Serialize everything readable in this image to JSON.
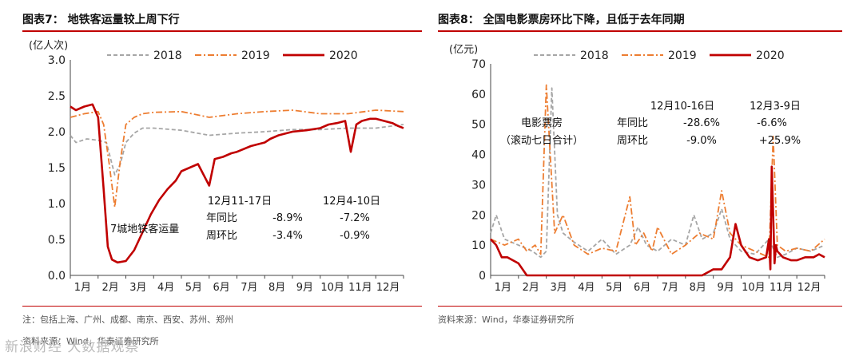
{
  "charts": [
    {
      "title": "图表7： 地铁客运量较上周下行",
      "footnote": "注：包括上海、广州、成都、南京、西安、苏州、郑州",
      "source": "资料来源：Wind，华泰证券研究所"
    },
    {
      "title": "图表8： 全国电影票房环比下降，且低于去年同期",
      "footnote": "",
      "source": "资料来源：Wind，华泰证券研究所"
    }
  ],
  "watermark": "新浪财经 大数据观察",
  "colors": {
    "s2018": "#a6a6a6",
    "s2019": "#ed7d31",
    "s2020": "#c00000",
    "accent": "#c00000"
  },
  "chart_data": [
    {
      "type": "line",
      "title": "地铁客运量较上周下行",
      "ylabel": "(亿人次)",
      "xlabel": "",
      "ylim": [
        0,
        3.0
      ],
      "yticks": [
        "0.0",
        "0.5",
        "1.0",
        "1.5",
        "2.0",
        "2.5",
        "3.0"
      ],
      "categories": [
        "1月",
        "2月",
        "3月",
        "4月",
        "5月",
        "6月",
        "7月",
        "8月",
        "9月",
        "10月",
        "11月",
        "12月"
      ],
      "legend": "top",
      "series": [
        {
          "name": "2018",
          "style": "dashed",
          "x": [
            0,
            0.2,
            0.6,
            1.0,
            1.3,
            1.6,
            1.8,
            2.0,
            2.3,
            2.6,
            3.0,
            4.0,
            5.0,
            6.0,
            7.0,
            8.0,
            9.0,
            10.0,
            11.0,
            12.0
          ],
          "values": [
            1.95,
            1.85,
            1.9,
            1.88,
            1.85,
            1.4,
            1.55,
            1.85,
            1.98,
            2.05,
            2.05,
            2.02,
            1.95,
            1.98,
            2.0,
            2.03,
            2.03,
            2.05,
            2.05,
            2.1
          ]
        },
        {
          "name": "2019",
          "style": "dashdot",
          "x": [
            0,
            0.5,
            1.0,
            1.2,
            1.4,
            1.6,
            1.8,
            2.0,
            2.3,
            2.6,
            3.0,
            4.0,
            5.0,
            6.0,
            7.0,
            8.0,
            9.0,
            10.0,
            11.0,
            12.0
          ],
          "values": [
            2.2,
            2.25,
            2.28,
            2.1,
            1.55,
            0.95,
            1.6,
            2.1,
            2.2,
            2.25,
            2.27,
            2.28,
            2.2,
            2.25,
            2.28,
            2.3,
            2.25,
            2.25,
            2.3,
            2.28
          ]
        },
        {
          "name": "2020",
          "style": "solid",
          "x": [
            0,
            0.2,
            0.5,
            0.8,
            1.0,
            1.2,
            1.35,
            1.5,
            1.7,
            2.0,
            2.3,
            2.6,
            2.9,
            3.2,
            3.5,
            3.8,
            4.0,
            4.3,
            4.6,
            4.8,
            5.0,
            5.2,
            5.5,
            5.8,
            6.0,
            6.5,
            7.0,
            7.2,
            7.5,
            8.0,
            8.5,
            9.0,
            9.3,
            9.6,
            9.9,
            10.1,
            10.3,
            10.5,
            10.8,
            11.0,
            11.3,
            11.6,
            11.8,
            12.0
          ],
          "values": [
            2.35,
            2.3,
            2.35,
            2.38,
            2.2,
            1.2,
            0.4,
            0.22,
            0.18,
            0.2,
            0.35,
            0.6,
            0.85,
            1.05,
            1.2,
            1.32,
            1.45,
            1.5,
            1.55,
            1.4,
            1.25,
            1.62,
            1.65,
            1.7,
            1.72,
            1.8,
            1.85,
            1.9,
            1.95,
            2.0,
            2.02,
            2.05,
            2.1,
            2.12,
            2.15,
            1.72,
            2.1,
            2.15,
            2.18,
            2.18,
            2.15,
            2.12,
            2.08,
            2.05
          ]
        }
      ],
      "annotations": {
        "series_label": "7城地铁客运量",
        "col1": "12月11-17日",
        "col2": "12月4-10日",
        "row1": "年同比",
        "row2": "周环比",
        "yoy1": "-8.9%",
        "yoy2": "-7.2%",
        "wow1": "-3.4%",
        "wow2": "-0.9%"
      }
    },
    {
      "type": "line",
      "title": "全国电影票房环比下降，且低于去年同期",
      "ylabel": "(亿元)",
      "xlabel": "",
      "ylim": [
        0,
        70
      ],
      "yticks": [
        "0",
        "10",
        "20",
        "30",
        "40",
        "50",
        "60",
        "70"
      ],
      "categories": [
        "1月",
        "2月",
        "3月",
        "4月",
        "5月",
        "6月",
        "7月",
        "8月",
        "9月",
        "10月",
        "11月",
        "12月"
      ],
      "legend": "top",
      "series": [
        {
          "name": "2018",
          "style": "dashed",
          "x": [
            0,
            0.2,
            0.5,
            1.0,
            1.5,
            1.8,
            2.0,
            2.2,
            2.4,
            2.6,
            3.0,
            3.5,
            4.0,
            4.5,
            5.0,
            5.3,
            5.6,
            6.0,
            6.5,
            7.0,
            7.3,
            7.6,
            8.0,
            8.3,
            8.6,
            9.0,
            9.5,
            10.0,
            10.3,
            10.6,
            11.0,
            11.5,
            12.0
          ],
          "values": [
            14,
            20,
            12,
            10,
            8,
            6,
            8,
            62,
            20,
            14,
            11,
            8,
            12,
            7,
            10,
            16,
            10,
            8,
            12,
            10,
            20,
            12,
            14,
            22,
            12,
            8,
            7,
            12,
            6,
            7,
            9,
            8,
            10
          ]
        },
        {
          "name": "2019",
          "style": "dashdot",
          "x": [
            0,
            0.5,
            1.0,
            1.3,
            1.6,
            1.8,
            2.0,
            2.3,
            2.6,
            3.0,
            3.5,
            4.0,
            4.5,
            5.0,
            5.2,
            5.5,
            5.8,
            6.0,
            6.5,
            7.0,
            7.5,
            8.0,
            8.3,
            8.6,
            9.0,
            9.5,
            10.0,
            10.15,
            10.3,
            10.6,
            11.0,
            11.5,
            12.0
          ],
          "values": [
            12,
            10,
            12,
            8,
            10,
            7,
            63,
            14,
            20,
            10,
            7,
            9,
            8,
            26,
            10,
            14,
            8,
            16,
            7,
            10,
            14,
            12,
            28,
            14,
            10,
            8,
            6,
            46,
            10,
            8,
            9,
            8,
            12
          ]
        },
        {
          "name": "2020",
          "style": "solid",
          "x": [
            0,
            0.2,
            0.4,
            0.6,
            1.0,
            1.3,
            1.5,
            1.7,
            2.0,
            3.0,
            4.0,
            5.0,
            6.0,
            7.0,
            7.6,
            8.0,
            8.3,
            8.6,
            8.8,
            9.0,
            9.3,
            9.6,
            9.9,
            10.0,
            10.05,
            10.1,
            10.15,
            10.2,
            10.25,
            10.3,
            10.5,
            10.8,
            11.0,
            11.3,
            11.6,
            11.8,
            12.0
          ],
          "values": [
            12,
            10,
            6,
            6,
            4,
            0,
            0,
            0,
            0,
            0,
            0,
            0,
            0,
            0,
            0,
            2,
            2,
            6,
            17,
            10,
            6,
            5,
            6,
            12,
            2,
            36,
            20,
            4,
            10,
            8,
            6,
            5,
            5,
            6,
            6,
            7,
            6
          ]
        }
      ],
      "annotations": {
        "series_label1": "电影票房",
        "series_label2": "（滚动七日合计）",
        "col1": "12月10-16日",
        "col2": "12月3-9日",
        "row1": "年同比",
        "row2": "周环比",
        "yoy1": "-28.6%",
        "yoy2": "-6.6%",
        "wow1": "-9.0%",
        "wow2": "+25.9%"
      }
    }
  ]
}
